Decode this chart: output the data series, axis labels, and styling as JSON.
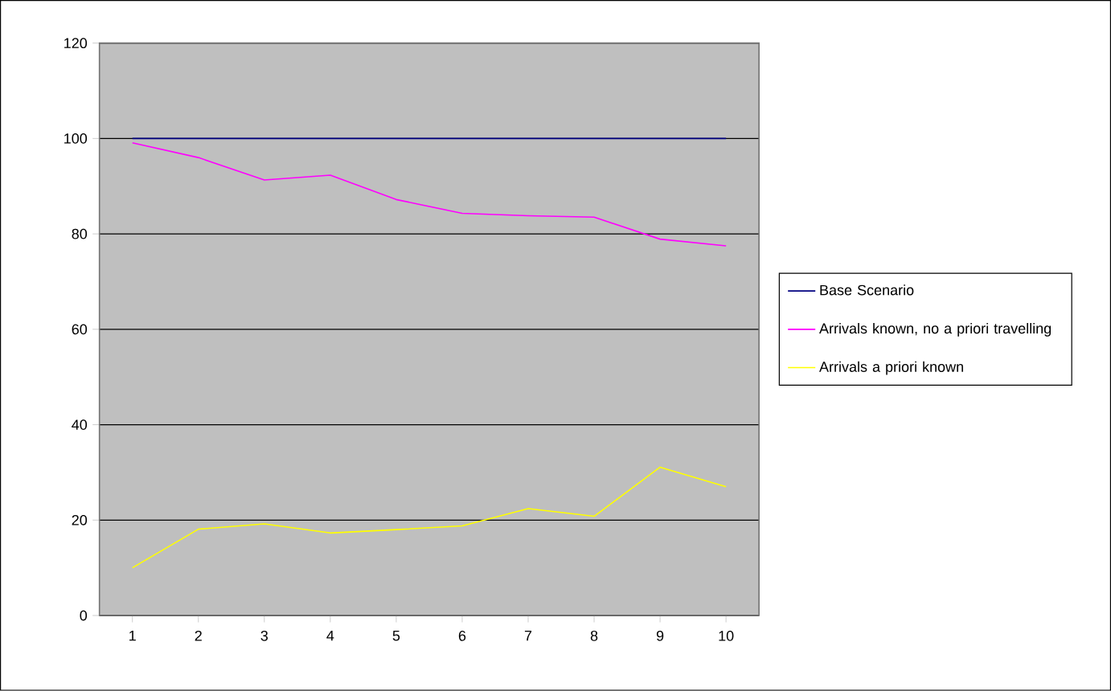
{
  "chart_data": {
    "type": "line",
    "categories": [
      "1",
      "2",
      "3",
      "4",
      "5",
      "6",
      "7",
      "8",
      "9",
      "10"
    ],
    "series": [
      {
        "name": "Base Scenario",
        "color": "#000080",
        "values": [
          100,
          100,
          100,
          100,
          100,
          100,
          100,
          100,
          100,
          100
        ]
      },
      {
        "name": "Arrivals known, no a priori travelling",
        "color": "#ff00ff",
        "values": [
          99.1,
          96.0,
          91.3,
          92.3,
          87.2,
          84.3,
          83.8,
          83.5,
          78.9,
          77.5
        ]
      },
      {
        "name": "Arrivals a priori known",
        "color": "#ffff00",
        "values": [
          10.0,
          18.1,
          19.2,
          17.3,
          18.0,
          18.8,
          22.4,
          20.8,
          31.1,
          27.0
        ]
      }
    ],
    "ylim": [
      0,
      120
    ],
    "yticks": [
      0,
      20,
      40,
      60,
      80,
      100,
      120
    ],
    "grid": "y",
    "legend": "right",
    "marker": "none",
    "line_style": "solid"
  }
}
